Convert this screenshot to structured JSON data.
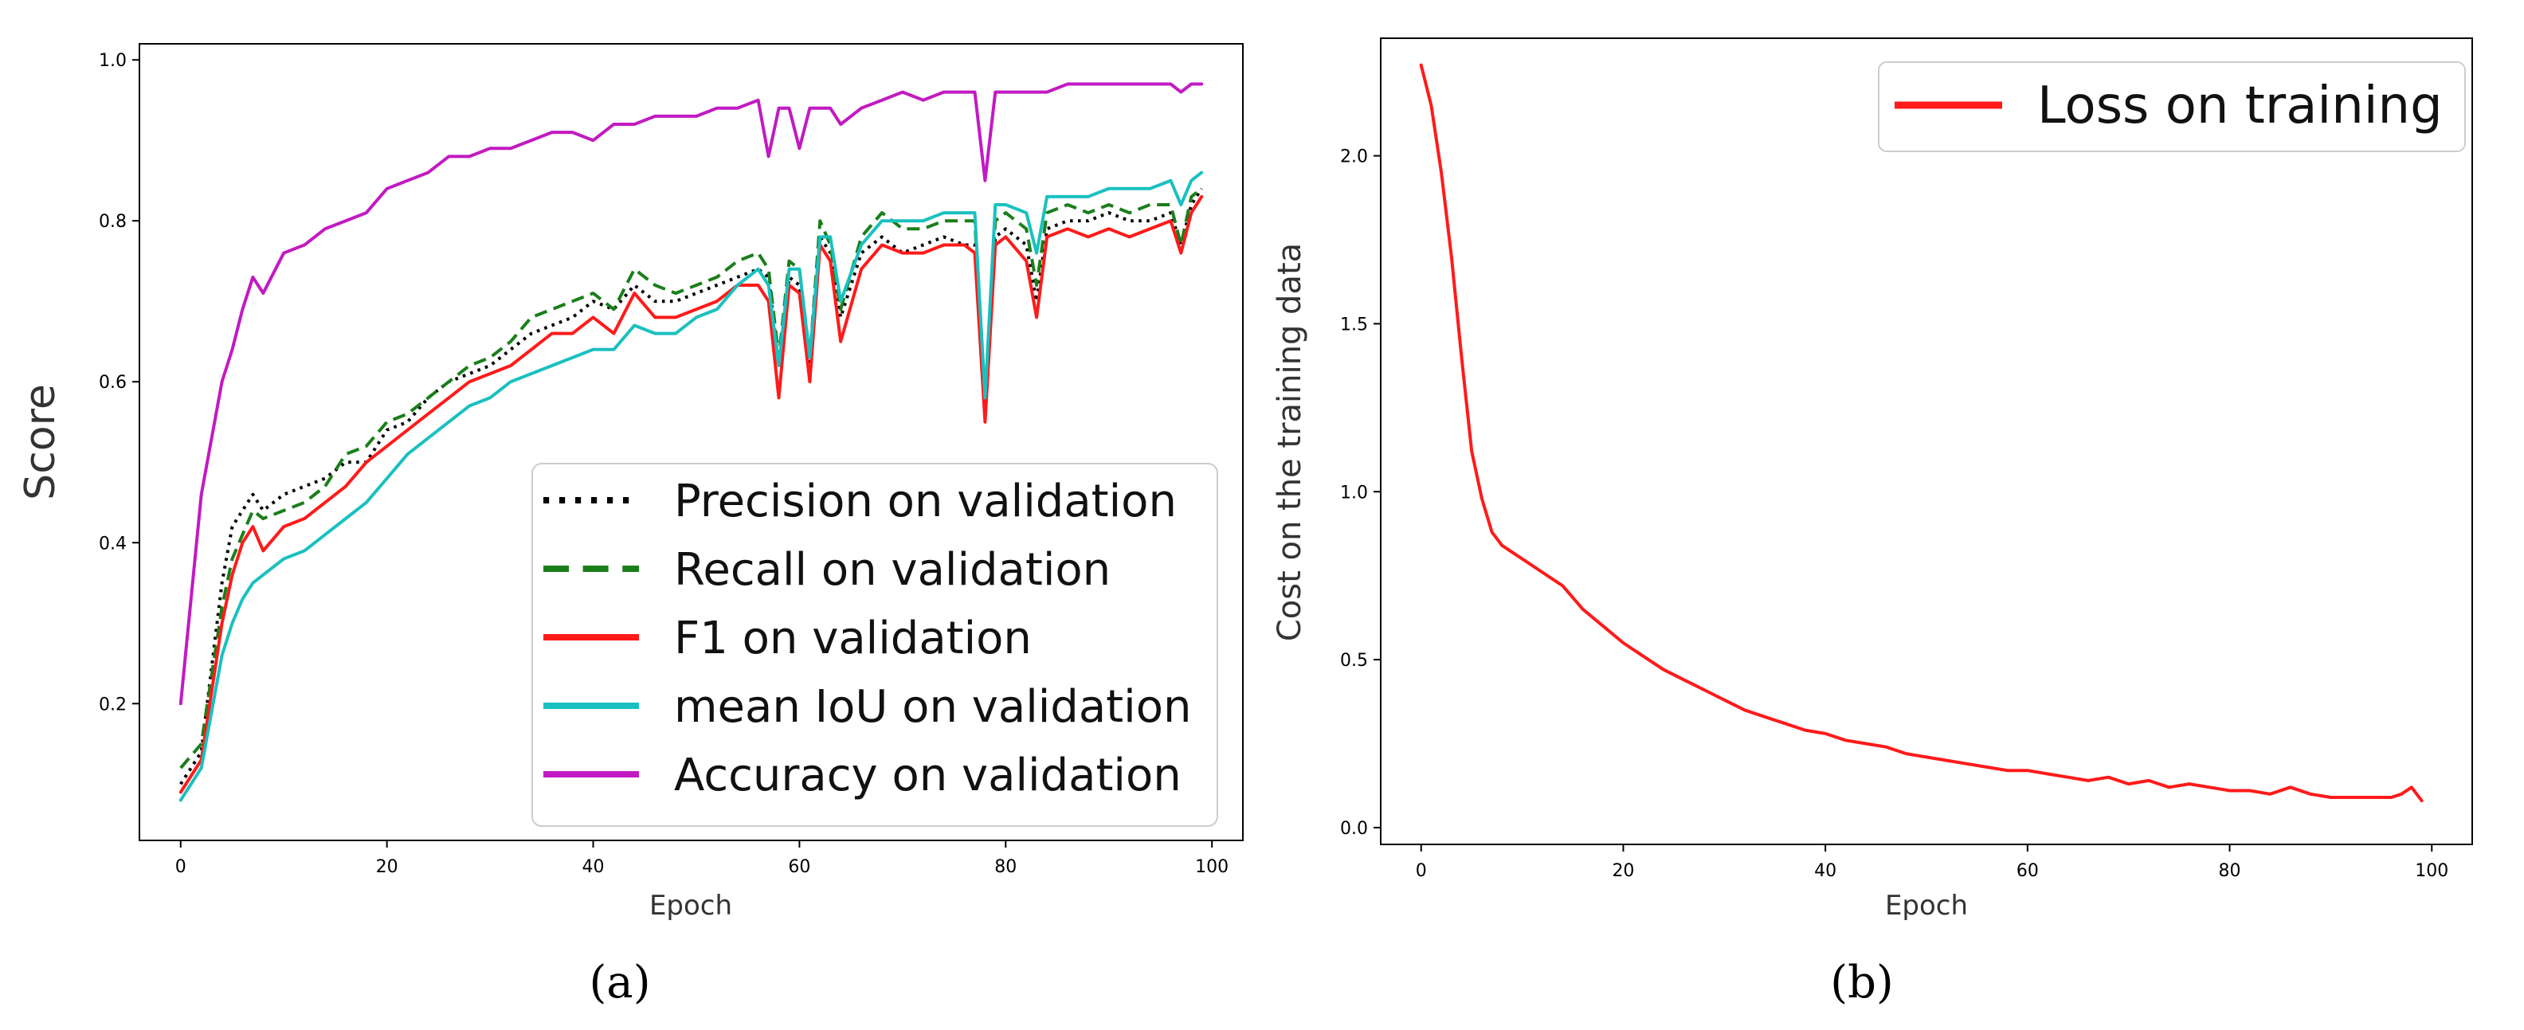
{
  "chart_data": [
    {
      "panel": "(a)",
      "type": "line",
      "xlabel": "Epoch",
      "ylabel": "Score",
      "xlim": [
        -4,
        103
      ],
      "ylim": [
        0.03,
        1.02
      ],
      "xticks": [
        0,
        20,
        40,
        60,
        80,
        100
      ],
      "yticks": [
        0.2,
        0.4,
        0.6,
        0.8,
        1.0
      ],
      "legend_position": "lower-right",
      "series": [
        {
          "name": "Precision on validation",
          "color": "#000000",
          "style": "dotted",
          "x": [
            0,
            2,
            4,
            5,
            6,
            7,
            8,
            10,
            12,
            14,
            16,
            18,
            20,
            22,
            24,
            26,
            28,
            30,
            32,
            34,
            36,
            38,
            40,
            42,
            44,
            46,
            48,
            50,
            52,
            54,
            56,
            57,
            58,
            59,
            60,
            61,
            62,
            63,
            64,
            66,
            68,
            70,
            72,
            74,
            76,
            77,
            78,
            79,
            80,
            82,
            83,
            84,
            86,
            88,
            90,
            92,
            94,
            96,
            97,
            98,
            99
          ],
          "y": [
            0.1,
            0.14,
            0.35,
            0.42,
            0.44,
            0.46,
            0.44,
            0.46,
            0.47,
            0.48,
            0.5,
            0.5,
            0.54,
            0.55,
            0.58,
            0.6,
            0.61,
            0.62,
            0.64,
            0.66,
            0.67,
            0.68,
            0.7,
            0.69,
            0.72,
            0.7,
            0.7,
            0.71,
            0.72,
            0.73,
            0.74,
            0.73,
            0.62,
            0.73,
            0.72,
            0.62,
            0.78,
            0.76,
            0.68,
            0.76,
            0.78,
            0.76,
            0.77,
            0.78,
            0.77,
            0.77,
            0.58,
            0.78,
            0.79,
            0.77,
            0.7,
            0.79,
            0.8,
            0.8,
            0.81,
            0.8,
            0.8,
            0.81,
            0.77,
            0.82,
            0.84
          ]
        },
        {
          "name": "Recall on validation",
          "color": "#1a7f1a",
          "style": "dashed",
          "x": [
            0,
            2,
            4,
            5,
            6,
            7,
            8,
            10,
            12,
            14,
            16,
            18,
            20,
            22,
            24,
            26,
            28,
            30,
            32,
            34,
            36,
            38,
            40,
            42,
            44,
            46,
            48,
            50,
            52,
            54,
            56,
            57,
            58,
            59,
            60,
            61,
            62,
            63,
            64,
            66,
            68,
            70,
            72,
            74,
            76,
            77,
            78,
            79,
            80,
            82,
            83,
            84,
            86,
            88,
            90,
            92,
            94,
            96,
            97,
            98,
            99
          ],
          "y": [
            0.12,
            0.15,
            0.32,
            0.38,
            0.41,
            0.44,
            0.43,
            0.44,
            0.45,
            0.47,
            0.51,
            0.52,
            0.55,
            0.56,
            0.58,
            0.6,
            0.62,
            0.63,
            0.65,
            0.68,
            0.69,
            0.7,
            0.71,
            0.69,
            0.74,
            0.72,
            0.71,
            0.72,
            0.73,
            0.75,
            0.76,
            0.74,
            0.63,
            0.75,
            0.74,
            0.63,
            0.8,
            0.77,
            0.69,
            0.78,
            0.81,
            0.79,
            0.79,
            0.8,
            0.8,
            0.8,
            0.58,
            0.8,
            0.81,
            0.79,
            0.72,
            0.81,
            0.82,
            0.81,
            0.82,
            0.81,
            0.82,
            0.82,
            0.77,
            0.83,
            0.84
          ]
        },
        {
          "name": "F1 on validation",
          "color": "#ff1a1a",
          "style": "solid",
          "x": [
            0,
            2,
            4,
            5,
            6,
            7,
            8,
            10,
            12,
            14,
            16,
            18,
            20,
            22,
            24,
            26,
            28,
            30,
            32,
            34,
            36,
            38,
            40,
            42,
            44,
            46,
            48,
            50,
            52,
            54,
            56,
            57,
            58,
            59,
            60,
            61,
            62,
            63,
            64,
            66,
            68,
            70,
            72,
            74,
            76,
            77,
            78,
            79,
            80,
            82,
            83,
            84,
            86,
            88,
            90,
            92,
            94,
            96,
            97,
            98,
            99
          ],
          "y": [
            0.09,
            0.13,
            0.3,
            0.36,
            0.4,
            0.42,
            0.39,
            0.42,
            0.43,
            0.45,
            0.47,
            0.5,
            0.52,
            0.54,
            0.56,
            0.58,
            0.6,
            0.61,
            0.62,
            0.64,
            0.66,
            0.66,
            0.68,
            0.66,
            0.71,
            0.68,
            0.68,
            0.69,
            0.7,
            0.72,
            0.72,
            0.7,
            0.58,
            0.72,
            0.71,
            0.6,
            0.77,
            0.75,
            0.65,
            0.74,
            0.77,
            0.76,
            0.76,
            0.77,
            0.77,
            0.76,
            0.55,
            0.77,
            0.78,
            0.75,
            0.68,
            0.78,
            0.79,
            0.78,
            0.79,
            0.78,
            0.79,
            0.8,
            0.76,
            0.81,
            0.83
          ]
        },
        {
          "name": "mean IoU on validation",
          "color": "#1ac0c0",
          "style": "solid",
          "x": [
            0,
            2,
            4,
            5,
            6,
            7,
            8,
            10,
            12,
            14,
            16,
            18,
            20,
            22,
            24,
            26,
            28,
            30,
            32,
            34,
            36,
            38,
            40,
            42,
            44,
            46,
            48,
            50,
            52,
            54,
            56,
            57,
            58,
            59,
            60,
            61,
            62,
            63,
            64,
            66,
            68,
            70,
            72,
            74,
            76,
            77,
            78,
            79,
            80,
            82,
            83,
            84,
            86,
            88,
            90,
            92,
            94,
            96,
            97,
            98,
            99
          ],
          "y": [
            0.08,
            0.12,
            0.26,
            0.3,
            0.33,
            0.35,
            0.36,
            0.38,
            0.39,
            0.41,
            0.43,
            0.45,
            0.48,
            0.51,
            0.53,
            0.55,
            0.57,
            0.58,
            0.6,
            0.61,
            0.62,
            0.63,
            0.64,
            0.64,
            0.67,
            0.66,
            0.66,
            0.68,
            0.69,
            0.72,
            0.74,
            0.72,
            0.62,
            0.74,
            0.74,
            0.63,
            0.78,
            0.78,
            0.7,
            0.77,
            0.8,
            0.8,
            0.8,
            0.81,
            0.81,
            0.81,
            0.58,
            0.82,
            0.82,
            0.81,
            0.76,
            0.83,
            0.83,
            0.83,
            0.84,
            0.84,
            0.84,
            0.85,
            0.82,
            0.85,
            0.86
          ]
        },
        {
          "name": "Accuracy on validation",
          "color": "#c21ac2",
          "style": "solid",
          "x": [
            0,
            2,
            4,
            5,
            6,
            7,
            8,
            10,
            12,
            14,
            16,
            18,
            20,
            22,
            24,
            26,
            28,
            30,
            32,
            34,
            36,
            38,
            40,
            42,
            44,
            46,
            48,
            50,
            52,
            54,
            56,
            57,
            58,
            59,
            60,
            61,
            62,
            63,
            64,
            66,
            68,
            70,
            72,
            74,
            76,
            77,
            78,
            79,
            80,
            82,
            83,
            84,
            86,
            88,
            90,
            92,
            94,
            96,
            97,
            98,
            99
          ],
          "y": [
            0.2,
            0.46,
            0.6,
            0.64,
            0.69,
            0.73,
            0.71,
            0.76,
            0.77,
            0.79,
            0.8,
            0.81,
            0.84,
            0.85,
            0.86,
            0.88,
            0.88,
            0.89,
            0.89,
            0.9,
            0.91,
            0.91,
            0.9,
            0.92,
            0.92,
            0.93,
            0.93,
            0.93,
            0.94,
            0.94,
            0.95,
            0.88,
            0.94,
            0.94,
            0.89,
            0.94,
            0.94,
            0.94,
            0.92,
            0.94,
            0.95,
            0.96,
            0.95,
            0.96,
            0.96,
            0.96,
            0.85,
            0.96,
            0.96,
            0.96,
            0.96,
            0.96,
            0.97,
            0.97,
            0.97,
            0.97,
            0.97,
            0.97,
            0.96,
            0.97,
            0.97
          ]
        }
      ]
    },
    {
      "panel": "(b)",
      "type": "line",
      "xlabel": "Epoch",
      "ylabel": "Cost on the training data",
      "xlim": [
        -4,
        104
      ],
      "ylim": [
        -0.05,
        2.35
      ],
      "xticks": [
        0,
        20,
        40,
        60,
        80,
        100
      ],
      "yticks": [
        0.0,
        0.5,
        1.0,
        1.5,
        2.0
      ],
      "legend_position": "top-right",
      "series": [
        {
          "name": "Loss on training",
          "color": "#ff1a1a",
          "style": "solid",
          "x": [
            0,
            1,
            2,
            3,
            4,
            5,
            6,
            7,
            8,
            10,
            12,
            14,
            16,
            18,
            20,
            22,
            24,
            26,
            28,
            30,
            32,
            34,
            36,
            38,
            40,
            42,
            44,
            46,
            48,
            50,
            52,
            54,
            56,
            58,
            60,
            62,
            64,
            66,
            68,
            70,
            72,
            74,
            76,
            78,
            80,
            82,
            84,
            86,
            88,
            90,
            92,
            94,
            96,
            97,
            98,
            99
          ],
          "y": [
            2.27,
            2.15,
            1.95,
            1.7,
            1.4,
            1.12,
            0.98,
            0.88,
            0.84,
            0.8,
            0.76,
            0.72,
            0.65,
            0.6,
            0.55,
            0.51,
            0.47,
            0.44,
            0.41,
            0.38,
            0.35,
            0.33,
            0.31,
            0.29,
            0.28,
            0.26,
            0.25,
            0.24,
            0.22,
            0.21,
            0.2,
            0.19,
            0.18,
            0.17,
            0.17,
            0.16,
            0.15,
            0.14,
            0.15,
            0.13,
            0.14,
            0.12,
            0.13,
            0.12,
            0.11,
            0.11,
            0.1,
            0.12,
            0.1,
            0.09,
            0.09,
            0.09,
            0.09,
            0.1,
            0.12,
            0.08
          ]
        }
      ]
    }
  ]
}
